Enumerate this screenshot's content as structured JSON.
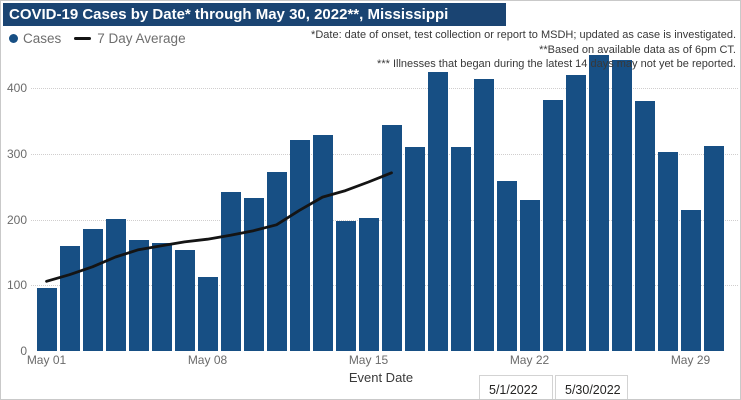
{
  "title": "COVID-19 Cases by Date* through May 30, 2022**, Mississippi",
  "legend": {
    "cases_label": "Cases",
    "avg_label": "7 Day Average"
  },
  "annotations": {
    "line1": "*Date: date of onset, test collection or report to MSDH; updated as case is investigated.",
    "line2": "**Based on available data as of 6pm CT.",
    "line3": "*** Illnesses that began during the latest 14 days may not yet be reported."
  },
  "x_axis_title": "Event Date",
  "date_inputs": {
    "start": "5/1/2022",
    "end": "5/30/2022"
  },
  "colors": {
    "title_bar_bg": "#1a4472",
    "title_text": "#ffffff",
    "bar": "#174F84",
    "avg_line": "#141414",
    "axis_text": "#6b6b6b",
    "legend_text": "#6e6e6e",
    "annotation_text": "#383838",
    "gridline": "#d0cece"
  },
  "chart_data": {
    "type": "bar",
    "title": "COVID-19 Cases by Date through May 30, 2022, Mississippi",
    "xlabel": "Event Date",
    "ylabel": "",
    "ylim": [
      0,
      400
    ],
    "y_ticks": [
      0,
      100,
      200,
      300,
      400
    ],
    "x_tick_labels": [
      "May 01",
      "May 08",
      "May 15",
      "May 22",
      "May 29"
    ],
    "grid": "horizontal-dotted",
    "legend_position": "top-left",
    "categories": [
      "May 01",
      "May 02",
      "May 03",
      "May 04",
      "May 05",
      "May 06",
      "May 07",
      "May 08",
      "May 09",
      "May 10",
      "May 11",
      "May 12",
      "May 13",
      "May 14",
      "May 15",
      "May 16",
      "May 17",
      "May 18",
      "May 19",
      "May 20",
      "May 21",
      "May 22",
      "May 23",
      "May 24",
      "May 25",
      "May 26",
      "May 27",
      "May 28",
      "May 29",
      "May 30"
    ],
    "series": [
      {
        "name": "Cases",
        "type": "bar",
        "values": [
          96,
          159,
          186,
          201,
          169,
          165,
          153,
          113,
          242,
          233,
          272,
          321,
          329,
          198,
          202,
          344,
          310,
          425,
          310,
          414,
          259,
          229,
          382,
          420,
          450,
          443,
          380,
          302,
          214,
          312
        ]
      },
      {
        "name": "7 Day Average",
        "type": "line",
        "values": [
          106,
          116,
          128,
          143,
          154,
          160,
          166,
          170,
          176,
          183,
          192,
          214,
          234,
          244,
          257,
          271,
          null,
          null,
          null,
          null,
          null,
          null,
          null,
          null,
          null,
          null,
          null,
          null,
          null,
          null
        ]
      }
    ]
  }
}
